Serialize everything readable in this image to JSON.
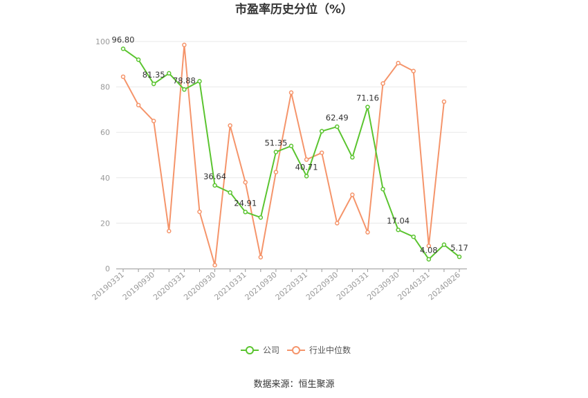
{
  "chart_data": {
    "type": "line",
    "title": "市盈率历史分位（%）",
    "x": [
      "20190331",
      "20190630",
      "20190930",
      "20191231",
      "20200331",
      "20200630",
      "20200930",
      "20201231",
      "20210331",
      "20210630",
      "20210930",
      "20211231",
      "20220331",
      "20220630",
      "20220930",
      "20221231",
      "20230331",
      "20230630",
      "20230930",
      "20231231",
      "20240331",
      "20240630",
      "20240826"
    ],
    "x_tick_labels": [
      "20190331",
      "20190930",
      "20200331",
      "20200930",
      "20210331",
      "20210930",
      "20220331",
      "20220930",
      "20230331",
      "20230930",
      "20240331",
      "20240826"
    ],
    "y_ticks": [
      "0",
      "20",
      "40",
      "60",
      "80",
      "100"
    ],
    "ylim": [
      0,
      100
    ],
    "grid": true,
    "legend_position": "bottom",
    "series": [
      {
        "name": "公司",
        "color": "#5ac42f",
        "values": [
          96.8,
          92.0,
          81.35,
          86.0,
          78.88,
          82.5,
          36.64,
          33.5,
          24.91,
          22.5,
          51.35,
          54.0,
          40.71,
          60.5,
          62.49,
          49.0,
          71.16,
          35.0,
          17.04,
          14.0,
          4.08,
          10.5,
          5.17
        ],
        "labels": {
          "0": "96.80",
          "2": "81.35",
          "4": "78.88",
          "6": "36.64",
          "8": "24.91",
          "10": "51.35",
          "12": "40.71",
          "14": "62.49",
          "16": "71.16",
          "18": "17.04",
          "20": "4.08",
          "22": "5.17"
        }
      },
      {
        "name": "行业中位数",
        "color": "#f5946a",
        "values": [
          84.5,
          72.0,
          65.0,
          16.5,
          98.5,
          25.0,
          1.5,
          63.0,
          38.0,
          5.0,
          42.5,
          77.5,
          48.0,
          51.0,
          20.0,
          32.5,
          16.0,
          81.5,
          90.5,
          87.0,
          10.0,
          73.5,
          null
        ]
      }
    ]
  },
  "source": "数据来源：恒生聚源"
}
